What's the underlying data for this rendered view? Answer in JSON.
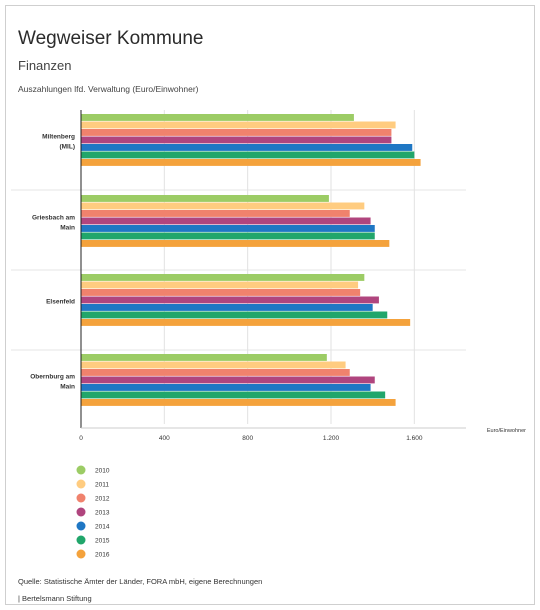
{
  "header": {
    "title": "Wegweiser Kommune",
    "subtitle": "Finanzen",
    "caption": "Auszahlungen lfd. Verwaltung (Euro/Einwohner)"
  },
  "footer": {
    "source": "Quelle: Statistische Ämter der Länder, FORA mbH, eigene Berechnungen",
    "copyright": "| Bertelsmann Stiftung"
  },
  "chart_data": {
    "type": "bar",
    "orientation": "horizontal",
    "categories": [
      "Miltenberg (MIL)",
      "Griesbach am Main",
      "Elsenfeld",
      "Obernburg am Main"
    ],
    "xlabel": "Euro/Einwohner",
    "xlim": [
      0,
      1800
    ],
    "xticks": [
      0,
      400,
      800,
      1200,
      1600
    ],
    "xtick_labels": [
      "0",
      "400",
      "800",
      "1.200",
      "1.600"
    ],
    "grid": true,
    "legend_position": "bottom-left",
    "series": [
      {
        "name": "2010",
        "color": "#9ccc65",
        "values": [
          1310,
          1190,
          1360,
          1180
        ]
      },
      {
        "name": "2011",
        "color": "#ffcc80",
        "values": [
          1510,
          1360,
          1330,
          1270
        ]
      },
      {
        "name": "2012",
        "color": "#f0826d",
        "values": [
          1490,
          1290,
          1340,
          1290
        ]
      },
      {
        "name": "2013",
        "color": "#b0457e",
        "values": [
          1490,
          1390,
          1430,
          1410
        ]
      },
      {
        "name": "2014",
        "color": "#1f77c4",
        "values": [
          1590,
          1410,
          1400,
          1390
        ]
      },
      {
        "name": "2015",
        "color": "#21a66b",
        "values": [
          1600,
          1410,
          1470,
          1460
        ]
      },
      {
        "name": "2016",
        "color": "#f4a23c",
        "values": [
          1630,
          1480,
          1580,
          1510
        ]
      }
    ]
  }
}
